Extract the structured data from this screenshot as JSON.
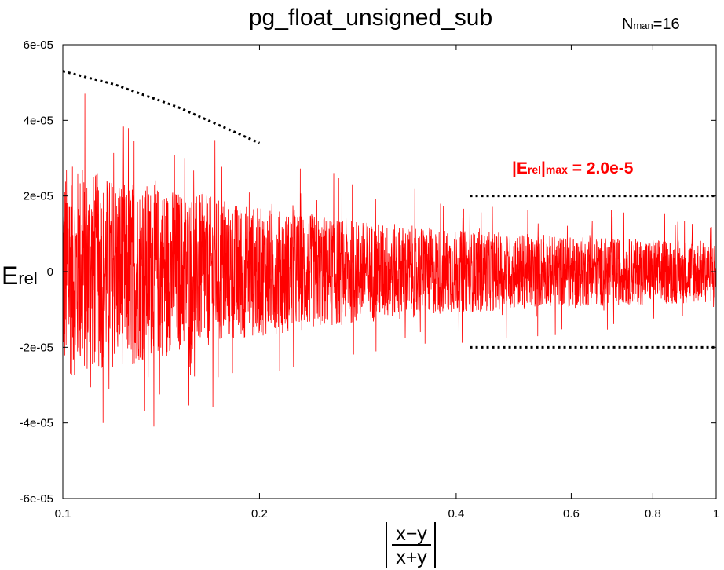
{
  "chart_data": {
    "type": "line",
    "title": "pg_float_unsigned_sub",
    "corner_label": {
      "main": "N",
      "sub": "man",
      "suffix": "=16"
    },
    "xscale": "log",
    "xlim": [
      0.1,
      1
    ],
    "ylim": [
      -6e-05,
      6e-05
    ],
    "xticks": [
      {
        "value": 0.1,
        "label": "0.1"
      },
      {
        "value": 0.2,
        "label": "0.2"
      },
      {
        "value": 0.4,
        "label": "0.4"
      },
      {
        "value": 0.6,
        "label": "0.6"
      },
      {
        "value": 0.8,
        "label": "0.8"
      },
      {
        "value": 1.0,
        "label": "1"
      }
    ],
    "yticks": [
      {
        "value": 6e-05,
        "label": "6e-05"
      },
      {
        "value": 4e-05,
        "label": "4e-05"
      },
      {
        "value": 2e-05,
        "label": "2e-05"
      },
      {
        "value": 0,
        "label": "0"
      },
      {
        "value": -2e-05,
        "label": "-2e-05"
      },
      {
        "value": -4e-05,
        "label": "-4e-05"
      },
      {
        "value": -6e-05,
        "label": "-6e-05"
      }
    ],
    "ylabel": {
      "main": "E",
      "sub": "rel"
    },
    "xlabel": {
      "numerator": "x−y",
      "denominator": "x+y"
    },
    "series": [
      {
        "style": "noise",
        "color": "#ff0000",
        "envelope": [
          {
            "x": 0.1,
            "amp": 5.2e-05
          },
          {
            "x": 0.12,
            "amp": 4.6e-05
          },
          {
            "x": 0.15,
            "amp": 4e-05
          },
          {
            "x": 0.2,
            "amp": 3.1e-05
          },
          {
            "x": 0.3,
            "amp": 2.4e-05
          },
          {
            "x": 0.4,
            "amp": 2e-05
          },
          {
            "x": 0.6,
            "amp": 1.7e-05
          },
          {
            "x": 1.0,
            "amp": 1.5e-05
          }
        ],
        "typical_fraction": 0.55
      }
    ],
    "reference_lines": [
      {
        "style": "dotted",
        "color": "#000000",
        "points": [
          [
            0.1,
            5.3e-05
          ],
          [
            0.12,
            4.95e-05
          ],
          [
            0.15,
            4.35e-05
          ],
          [
            0.18,
            3.75e-05
          ],
          [
            0.2,
            3.4e-05
          ]
        ]
      },
      {
        "style": "dotted",
        "color": "#000000",
        "points": [
          [
            0.42,
            2e-05
          ],
          [
            1.0,
            2e-05
          ]
        ]
      },
      {
        "style": "dotted",
        "color": "#000000",
        "points": [
          [
            0.42,
            -2e-05
          ],
          [
            1.0,
            -2e-05
          ]
        ]
      }
    ],
    "annotation": {
      "prefix": "|E",
      "sub1": "rel",
      "mid": "|",
      "sub2": "max",
      "suffix": " = 2.0e-5",
      "color": "#ff0000"
    },
    "grid": false,
    "legend": "none"
  }
}
